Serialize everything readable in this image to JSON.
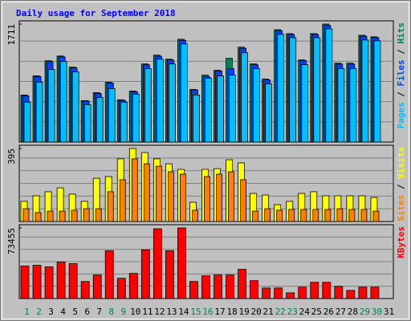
{
  "chart_data": {
    "type": "bar",
    "title": "Daily usage for September 2018",
    "categories": [
      "1",
      "2",
      "3",
      "4",
      "5",
      "6",
      "7",
      "8",
      "9",
      "10",
      "11",
      "12",
      "13",
      "14",
      "15",
      "16",
      "17",
      "18",
      "19",
      "20",
      "21",
      "22",
      "23",
      "24",
      "25",
      "26",
      "27",
      "28",
      "29",
      "30",
      "31"
    ],
    "category_colors": [
      "#00805c",
      "#00805c",
      "#000000",
      "#000000",
      "#000000",
      "#000000",
      "#000000",
      "#00805c",
      "#00805c",
      "#000000",
      "#000000",
      "#000000",
      "#000000",
      "#000000",
      "#00805c",
      "#00805c",
      "#000000",
      "#000000",
      "#000000",
      "#000000",
      "#000000",
      "#00805c",
      "#00805c",
      "#000000",
      "#000000",
      "#000000",
      "#000000",
      "#000000",
      "#00805c",
      "#00805c",
      "#000000"
    ],
    "legend_separator": " / ",
    "panels": [
      {
        "ylim": [
          0,
          1711
        ],
        "yticks": [
          1711
        ],
        "series": [
          {
            "name": "Pages",
            "color": "#00c0ff",
            "values": [
              578,
              867,
              1052,
              1168,
              1017,
              543,
              647,
              775,
              578,
              694,
              1064,
              1202,
              1133,
              1422,
              682,
              925,
              959,
              971,
              1295,
              1064,
              844,
              1561,
              1514,
              1122,
              1514,
              1641,
              1064,
              1064,
              1480,
              1468,
              null
            ]
          },
          {
            "name": "Files",
            "color": "#0040ff",
            "values": [
              670,
              950,
              1165,
              1235,
              1075,
              595,
              705,
              855,
              605,
              730,
              1120,
              1245,
              1190,
              1475,
              755,
              948,
              1030,
              1064,
              1360,
              1120,
              900,
              1615,
              1560,
              1180,
              1560,
              1690,
              1130,
              1130,
              1535,
              1515,
              null
            ]
          },
          {
            "name": "Hits",
            "color": "#00805c",
            "values": [
              682,
              960,
              1179,
              1248,
              1087,
              601,
              717,
              867,
              613,
              740,
              1133,
              1260,
              1202,
              1491,
              763,
              971,
              1040,
              1214,
              1376,
              1133,
              913,
              1630,
              1572,
              1191,
              1572,
              1711,
              1144,
              1144,
              1549,
              1526,
              null
            ]
          }
        ]
      },
      {
        "ylim": [
          0,
          395
        ],
        "yticks": [
          395
        ],
        "series": [
          {
            "name": "Sites",
            "color": "#ff8000",
            "values": [
              69,
              48,
              56,
              56,
              61,
              69,
              69,
              161,
              226,
              339,
              312,
              299,
              269,
              256,
              61,
              243,
              256,
              269,
              226,
              56,
              69,
              61,
              65,
              65,
              65,
              65,
              69,
              65,
              65,
              56,
              null
            ]
          },
          {
            "name": "Visits",
            "color": "#ffff00",
            "values": [
              109,
              139,
              161,
              182,
              148,
              109,
              234,
              243,
              339,
              395,
              373,
              339,
              312,
              282,
              104,
              282,
              286,
              334,
              317,
              152,
              143,
              91,
              109,
              152,
              161,
              139,
              139,
              139,
              139,
              130,
              null
            ]
          }
        ]
      },
      {
        "ylim": [
          0,
          73455
        ],
        "yticks": [
          73455
        ],
        "series": [
          {
            "name": "KBytes",
            "color": "#ff0000",
            "values": [
              33760,
              34604,
              32916,
              37980,
              36292,
              17724,
              24476,
              49796,
              21100,
              26164,
              50640,
              72584,
              49796,
              73455,
              17724,
              23632,
              24476,
              24476,
              30384,
              18568,
              10972,
              10972,
              5908,
              11816,
              16880,
              16880,
              12660,
              8440,
              11816,
              11816,
              null
            ]
          }
        ]
      }
    ]
  }
}
